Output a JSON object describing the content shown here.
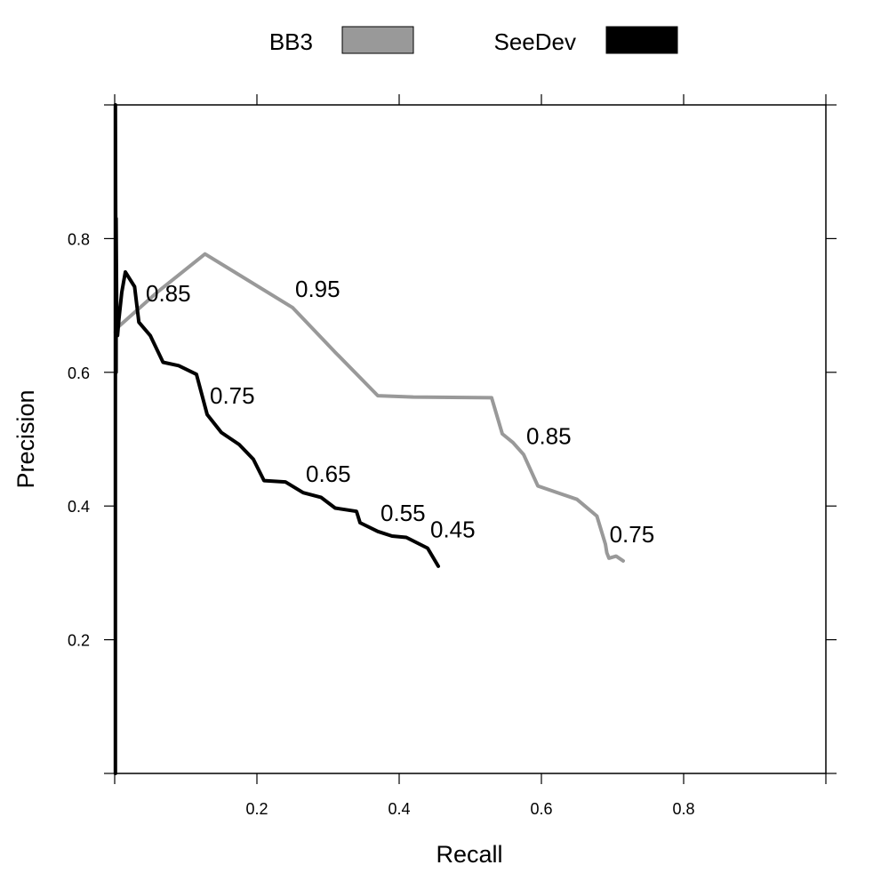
{
  "chart_data": {
    "type": "line",
    "xlabel": "Recall",
    "ylabel": "Precision",
    "xlim": [
      0,
      1
    ],
    "ylim": [
      0,
      1
    ],
    "xticks": [
      0.2,
      0.4,
      0.6,
      0.8
    ],
    "yticks": [
      0.2,
      0.4,
      0.6,
      0.8
    ],
    "xtick_labels": [
      "0.2",
      "0.4",
      "0.6",
      "0.8"
    ],
    "ytick_labels": [
      "0.2",
      "0.4",
      "0.6",
      "0.8"
    ],
    "legend_position": "top",
    "series": [
      {
        "name": "BB3",
        "color": "#999999",
        "x": [
          0.001,
          0.003,
          0.005,
          0.06,
          0.127,
          0.25,
          0.31,
          0.37,
          0.42,
          0.53,
          0.545,
          0.56,
          0.575,
          0.595,
          0.65,
          0.678,
          0.69,
          0.692,
          0.695,
          0.705,
          0.715
        ],
        "y": [
          0.66,
          0.666,
          0.668,
          0.72,
          0.777,
          0.697,
          0.63,
          0.565,
          0.563,
          0.562,
          0.508,
          0.495,
          0.477,
          0.43,
          0.41,
          0.385,
          0.343,
          0.33,
          0.322,
          0.325,
          0.318
        ],
        "annotations": [
          {
            "x": 0.25,
            "y": 0.697,
            "text": "0.95"
          },
          {
            "x": 0.575,
            "y": 0.477,
            "text": "0.85"
          },
          {
            "x": 0.692,
            "y": 0.33,
            "text": "0.75"
          }
        ]
      },
      {
        "name": "SeeDev",
        "color": "#000000",
        "x": [
          0.001,
          0.001,
          0.001,
          0.002,
          0.002,
          0.003,
          0.004,
          0.006,
          0.01,
          0.015,
          0.028,
          0.034,
          0.05,
          0.068,
          0.09,
          0.115,
          0.13,
          0.15,
          0.175,
          0.195,
          0.21,
          0.24,
          0.265,
          0.29,
          0.31,
          0.34,
          0.345,
          0.37,
          0.39,
          0.41,
          0.44,
          0.455
        ],
        "y": [
          0.0,
          0.5,
          1.0,
          0.6,
          0.83,
          0.66,
          0.655,
          0.68,
          0.72,
          0.75,
          0.728,
          0.675,
          0.655,
          0.615,
          0.61,
          0.597,
          0.537,
          0.51,
          0.492,
          0.47,
          0.438,
          0.436,
          0.42,
          0.413,
          0.397,
          0.392,
          0.375,
          0.362,
          0.355,
          0.353,
          0.337,
          0.31
        ],
        "annotations": [
          {
            "x": 0.04,
            "y": 0.69,
            "text": "0.85"
          },
          {
            "x": 0.13,
            "y": 0.537,
            "text": "0.75"
          },
          {
            "x": 0.265,
            "y": 0.42,
            "text": "0.65"
          },
          {
            "x": 0.37,
            "y": 0.362,
            "text": "0.55"
          },
          {
            "x": 0.44,
            "y": 0.337,
            "text": "0.45"
          }
        ]
      }
    ]
  }
}
